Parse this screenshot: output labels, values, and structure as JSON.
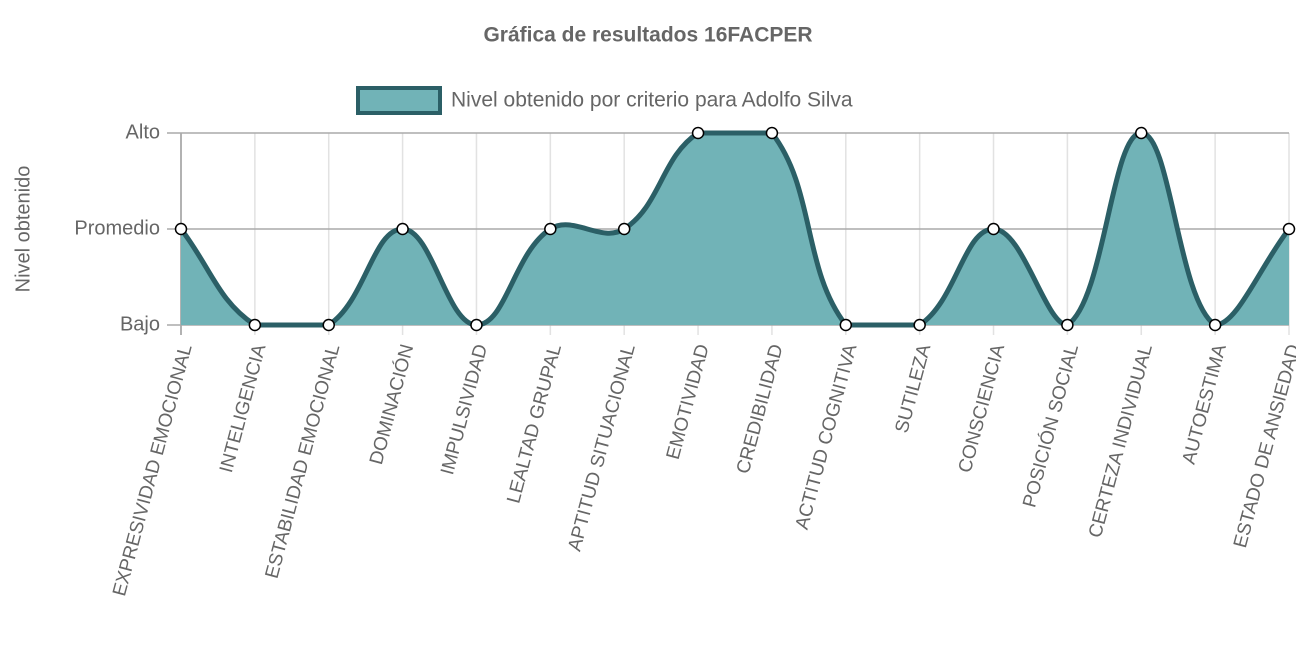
{
  "chart_data": {
    "type": "line",
    "title": "Gráfica de resultados 16FACPER",
    "y_label": "Nivel obtenido",
    "categories": [
      "EXPRESIVIDAD EMOCIONAL",
      "INTELIGENCIA",
      "ESTABILIDAD EMOCIONAL",
      "DOMINACIÓN",
      "IMPULSIVIDAD",
      "LEALTAD GRUPAL",
      "APTITUD SITUACIONAL",
      "EMOTIVIDAD",
      "CREDIBILIDAD",
      "ACTITUD COGNITIVA",
      "SUTILEZA",
      "CONSCIENCIA",
      "POSICIÓN SOCIAL",
      "CERTEZA INDIVIDUAL",
      "AUTOESTIMA",
      "ESTADO DE ANSIEDAD"
    ],
    "series": [
      {
        "name": "Nivel obtenido por criterio para Adolfo Silva",
        "color": "#2b5f66",
        "fill_color": "#71b3b7",
        "values": [
          2,
          1,
          1,
          2,
          1,
          2,
          2,
          3,
          3,
          1,
          1,
          2,
          1,
          3,
          1,
          2
        ]
      }
    ],
    "ylim": [
      1,
      3
    ],
    "yticks": [
      {
        "value": 1,
        "label": "Bajo"
      },
      {
        "value": 2,
        "label": "Promedio"
      },
      {
        "value": 3,
        "label": "Alto"
      }
    ],
    "grid": true,
    "legend": "top"
  }
}
